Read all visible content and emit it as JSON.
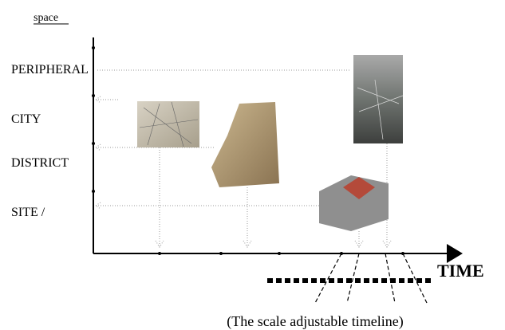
{
  "y_axis_label": "space",
  "levels": [
    "PERIPHERAL",
    "CITY",
    "DISTRICT",
    "SITE /"
  ],
  "x_axis_label": "TIME",
  "caption": "(The scale adjustable timeline)"
}
